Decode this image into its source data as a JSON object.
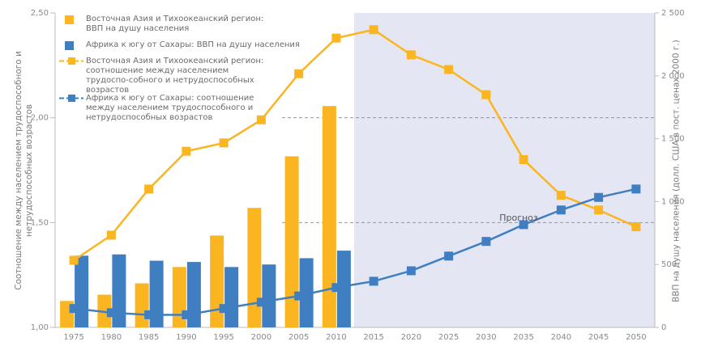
{
  "chart_data": {
    "type": "combo",
    "categories": [
      "1975",
      "1980",
      "1985",
      "1990",
      "1995",
      "2000",
      "2005",
      "2010",
      "2015",
      "2020",
      "2025",
      "2030",
      "2035",
      "2040",
      "2045",
      "2050"
    ],
    "ylabel": "Соотношение между населением трудоспособного и нетрудоспособных возрастов",
    "y2label": "ВВП на душу населения (долл. США в пост. ценах 2000 г.)",
    "annotation": "Прогноз",
    "ylim": [
      1,
      2.5
    ],
    "yticks": [
      {
        "value": 1,
        "label": "1,00"
      },
      {
        "value": 1.5,
        "label": "1,50"
      },
      {
        "value": 2,
        "label": "2,00"
      },
      {
        "value": 2.5,
        "label": "2,50"
      }
    ],
    "y2lim": [
      0,
      2500
    ],
    "y2ticks": [
      0,
      500,
      {
        "value": 1000,
        "label": "1 000"
      },
      {
        "value": 1500,
        "label": "1 500"
      },
      {
        "value": 2000,
        "label": "2 000"
      },
      {
        "value": 2500,
        "label": "2 500"
      }
    ],
    "forecast_from": "2015",
    "grid": true,
    "series": [
      {
        "name": "Восточная Азия и Тихоокеанский регион: ВВП на душу населения",
        "type": "bar",
        "axis": "y2",
        "color": "#fbb520",
        "values": [
          210,
          260,
          350,
          480,
          730,
          950,
          1360,
          1760,
          null,
          null,
          null,
          null,
          null,
          null,
          null,
          null
        ]
      },
      {
        "name": "Африка к югу от Сахары: ВВП на душу населения",
        "type": "bar",
        "axis": "y2",
        "color": "#3f7fc1",
        "values": [
          570,
          580,
          530,
          520,
          480,
          500,
          550,
          610,
          null,
          null,
          null,
          null,
          null,
          null,
          null,
          null
        ]
      },
      {
        "name": "Восточная Азия и Тихоокеанский регион: соотношение между населением трудоспо-собного и нетрудоспособных возрастов",
        "type": "line",
        "axis": "y",
        "color": "#fbb520",
        "values": [
          1.32,
          1.44,
          1.66,
          1.84,
          1.88,
          1.99,
          2.21,
          2.38,
          2.42,
          2.3,
          2.23,
          2.11,
          1.8,
          1.63,
          1.56,
          1.48
        ]
      },
      {
        "name": "Африка к югу от Сахары: соотношение между населением трудоспособного и нетрудоспособных возрастов",
        "type": "line",
        "axis": "y",
        "color": "#3f7fc1",
        "values": [
          1.09,
          1.07,
          1.06,
          1.06,
          1.09,
          1.12,
          1.15,
          1.19,
          1.22,
          1.27,
          1.34,
          1.41,
          1.49,
          1.56,
          1.62,
          1.66
        ]
      }
    ]
  }
}
